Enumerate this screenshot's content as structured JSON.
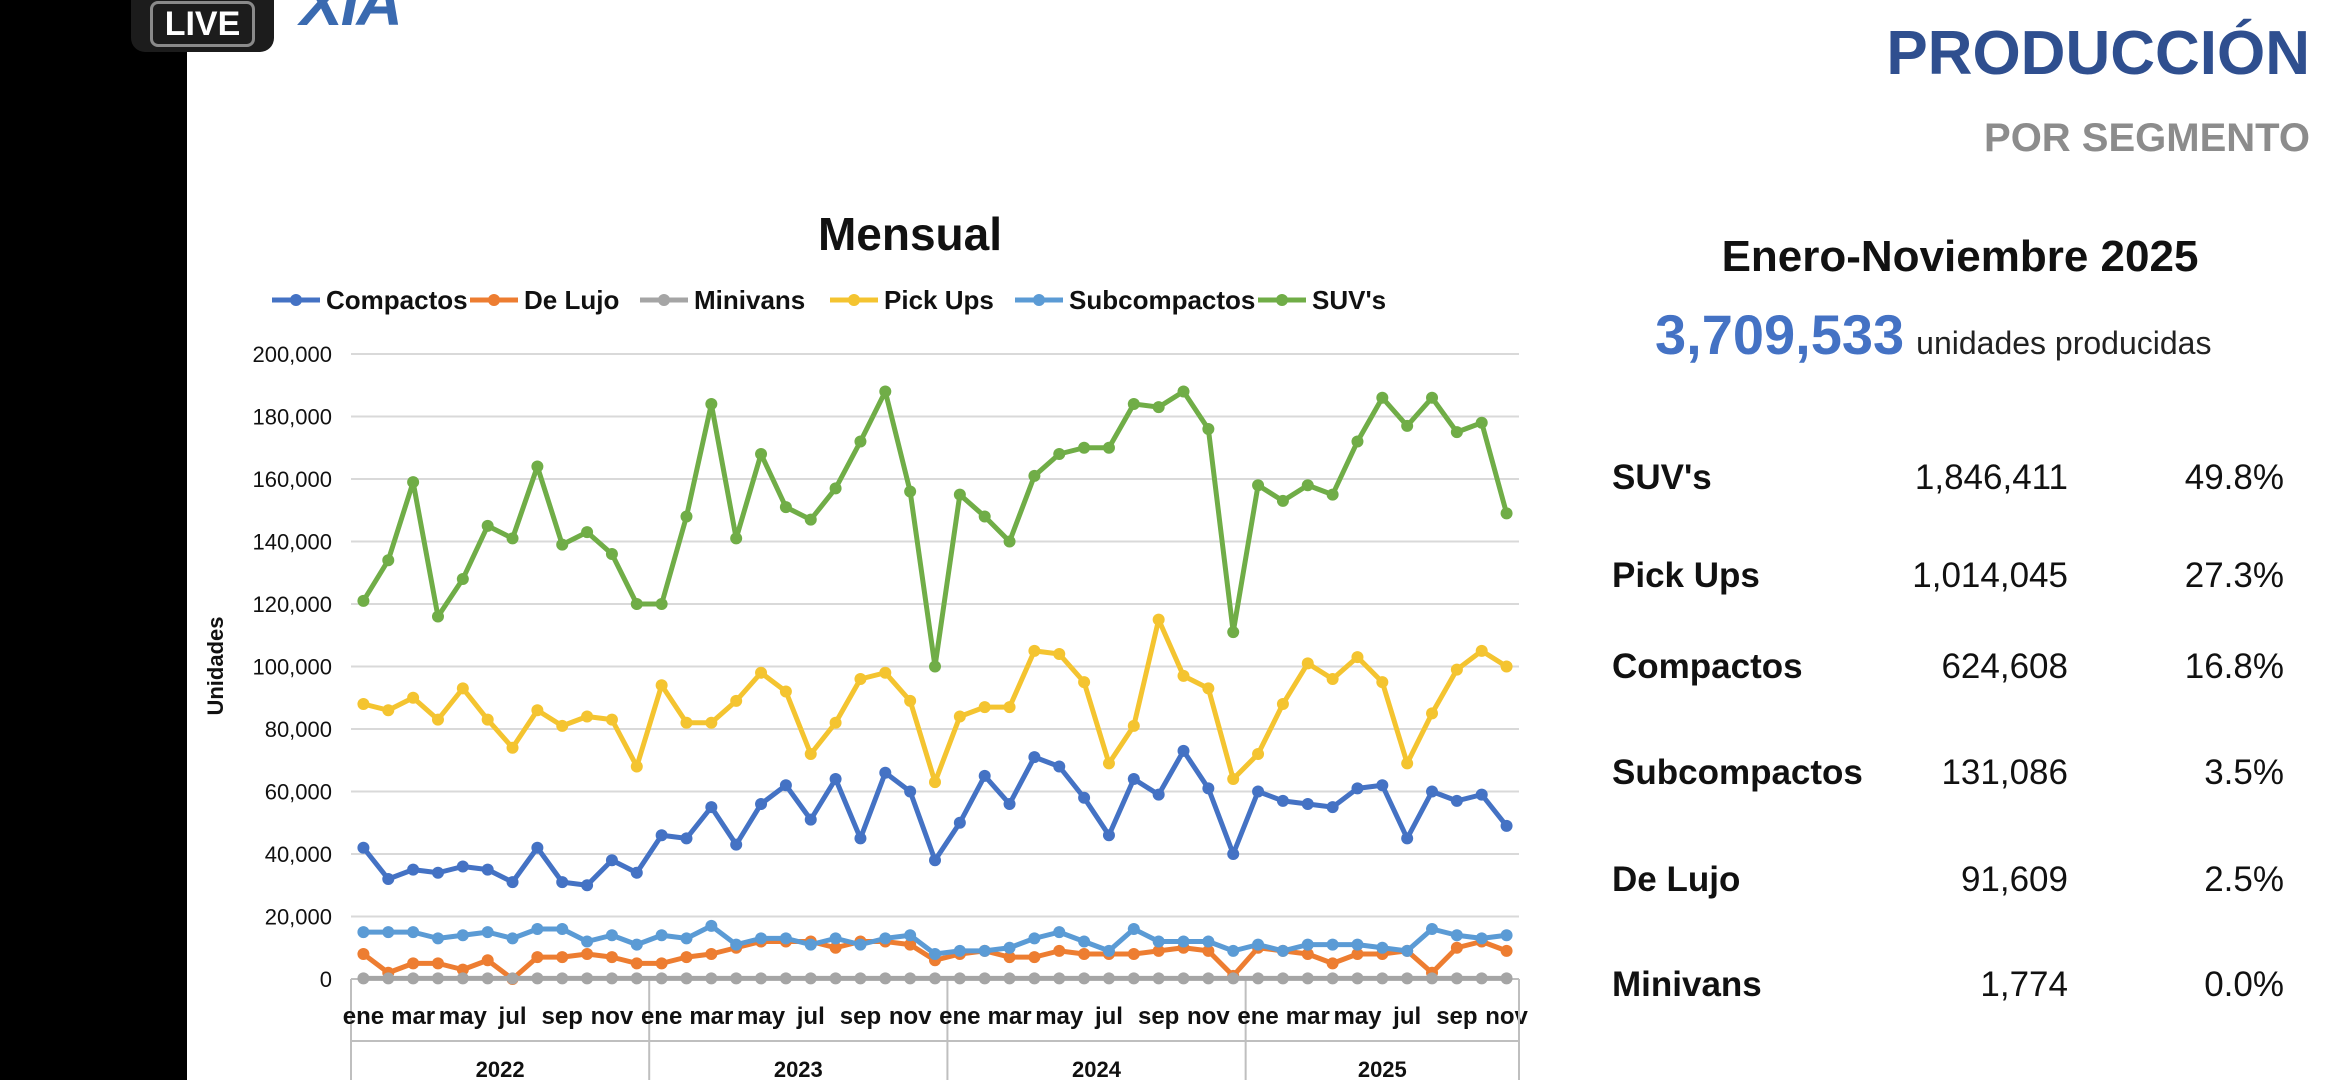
{
  "overlay": {
    "live_label": "LIVE",
    "logo_text": "XIA"
  },
  "header": {
    "title": "PRODUCCIÓN",
    "subtitle": "POR SEGMENTO"
  },
  "summary": {
    "period": "Enero-Noviembre 2025",
    "total": "3,709,533",
    "total_label": "unidades producidas",
    "rows": [
      {
        "label": "SUV's",
        "value": "1,846,411",
        "pct": "49.8%"
      },
      {
        "label": "Pick Ups",
        "value": "1,014,045",
        "pct": "27.3%"
      },
      {
        "label": "Compactos",
        "value": "624,608",
        "pct": "16.8%"
      },
      {
        "label": "Subcompactos",
        "value": "131,086",
        "pct": "3.5%"
      },
      {
        "label": "De Lujo",
        "value": "91,609",
        "pct": "2.5%"
      },
      {
        "label": "Minivans",
        "value": "1,774",
        "pct": "0.0%"
      }
    ]
  },
  "chart_data": {
    "type": "line",
    "title": "Mensual",
    "ylabel": "Unidades",
    "xlabel": "",
    "ylim": [
      0,
      200000
    ],
    "yticks": [
      "0",
      "20,000",
      "40,000",
      "60,000",
      "80,000",
      "100,000",
      "120,000",
      "140,000",
      "160,000",
      "180,000",
      "200,000"
    ],
    "grid": true,
    "legend": "top",
    "month_labels": [
      "ene",
      "mar",
      "may",
      "jul",
      "sep",
      "nov"
    ],
    "years": [
      "2022",
      "2023",
      "2024",
      "2025"
    ],
    "months_per_year": [
      12,
      12,
      12,
      11
    ],
    "series": [
      {
        "name": "Compactos",
        "color": "#4472c4",
        "values": [
          42000,
          32000,
          35000,
          34000,
          36000,
          35000,
          31000,
          42000,
          31000,
          30000,
          38000,
          34000,
          46000,
          45000,
          55000,
          43000,
          56000,
          62000,
          51000,
          64000,
          45000,
          66000,
          60000,
          38000,
          50000,
          65000,
          56000,
          71000,
          68000,
          58000,
          46000,
          64000,
          59000,
          73000,
          61000,
          40000,
          60000,
          57000,
          56000,
          55000,
          61000,
          62000,
          45000,
          60000,
          57000,
          59000,
          49000
        ]
      },
      {
        "name": "De Lujo",
        "color": "#ed7d31",
        "values": [
          8000,
          2000,
          5000,
          5000,
          3000,
          6000,
          0,
          7000,
          7000,
          8000,
          7000,
          5000,
          5000,
          7000,
          8000,
          10000,
          12000,
          12000,
          12000,
          10000,
          12000,
          12000,
          11000,
          6000,
          8000,
          9000,
          7000,
          7000,
          9000,
          8000,
          8000,
          8000,
          9000,
          10000,
          9000,
          1000,
          10000,
          9000,
          8000,
          5000,
          8000,
          8000,
          9000,
          2000,
          10000,
          12000,
          9000
        ]
      },
      {
        "name": "Minivans",
        "color": "#a5a5a5",
        "values": [
          200,
          200,
          200,
          200,
          200,
          200,
          200,
          200,
          200,
          200,
          200,
          200,
          200,
          200,
          200,
          200,
          200,
          200,
          200,
          200,
          200,
          200,
          200,
          200,
          200,
          200,
          200,
          200,
          200,
          200,
          200,
          200,
          200,
          200,
          200,
          200,
          200,
          200,
          200,
          200,
          200,
          200,
          200,
          200,
          200,
          200,
          200
        ]
      },
      {
        "name": "Pick Ups",
        "color": "#f4c430",
        "values": [
          88000,
          86000,
          90000,
          83000,
          93000,
          83000,
          74000,
          86000,
          81000,
          84000,
          83000,
          68000,
          94000,
          82000,
          82000,
          89000,
          98000,
          92000,
          72000,
          82000,
          96000,
          98000,
          89000,
          63000,
          84000,
          87000,
          87000,
          105000,
          104000,
          95000,
          69000,
          81000,
          115000,
          97000,
          93000,
          64000,
          72000,
          88000,
          101000,
          96000,
          103000,
          95000,
          69000,
          85000,
          99000,
          105000,
          100000
        ]
      },
      {
        "name": "Subcompactos",
        "color": "#5b9bd5",
        "values": [
          15000,
          15000,
          15000,
          13000,
          14000,
          15000,
          13000,
          16000,
          16000,
          12000,
          14000,
          11000,
          14000,
          13000,
          17000,
          11000,
          13000,
          13000,
          11000,
          13000,
          11000,
          13000,
          14000,
          8000,
          9000,
          9000,
          10000,
          13000,
          15000,
          12000,
          9000,
          16000,
          12000,
          12000,
          12000,
          9000,
          11000,
          9000,
          11000,
          11000,
          11000,
          10000,
          9000,
          16000,
          14000,
          13000,
          14000
        ]
      },
      {
        "name": "SUV's",
        "color": "#70ad47",
        "values": [
          121000,
          134000,
          159000,
          116000,
          128000,
          145000,
          141000,
          164000,
          139000,
          143000,
          136000,
          120000,
          120000,
          148000,
          184000,
          141000,
          168000,
          151000,
          147000,
          157000,
          172000,
          188000,
          156000,
          100000,
          155000,
          148000,
          140000,
          161000,
          168000,
          170000,
          170000,
          184000,
          183000,
          188000,
          176000,
          111000,
          158000,
          153000,
          158000,
          155000,
          172000,
          186000,
          177000,
          186000,
          175000,
          178000,
          149000
        ]
      }
    ]
  }
}
